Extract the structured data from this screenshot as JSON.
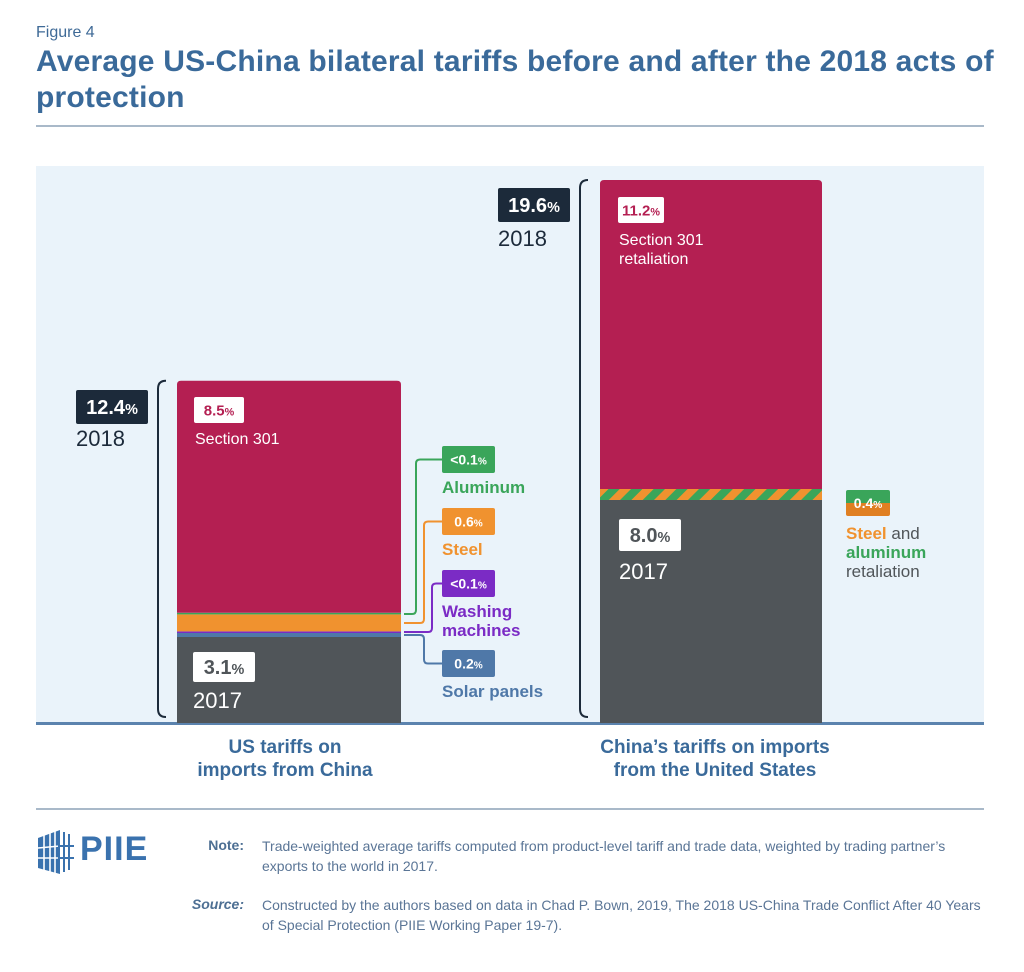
{
  "figure_label": "Figure 4",
  "title": "Average US-China bilateral tariffs before and after the 2018 acts of protection",
  "chart_data": {
    "type": "bar",
    "stacked": true,
    "title": "Average US-China bilateral tariffs before and after the 2018 acts of protection",
    "unit": "%",
    "categories": [
      "US tariffs on imports from China",
      "China's tariffs on imports from the United States"
    ],
    "groups": [
      {
        "label": "US tariffs on imports from China",
        "total_2018": 12.4,
        "total_2018_label": "12.4%",
        "total_2018_year": "2018",
        "segments": [
          {
            "name": "2017",
            "value": 3.1,
            "label": "3.1%",
            "caption": "2017",
            "color": "#505559"
          },
          {
            "name": "Solar panels",
            "value": 0.2,
            "label": "0.2%",
            "caption": "Solar panels",
            "color": "#4f78a8"
          },
          {
            "name": "Washing machines",
            "value": 0.05,
            "label": "<0.1%",
            "caption": "Washing machines",
            "color": "#7b2bc5"
          },
          {
            "name": "Steel",
            "value": 0.6,
            "label": "0.6%",
            "caption": "Steel",
            "color": "#f0922f"
          },
          {
            "name": "Aluminum",
            "value": 0.05,
            "label": "<0.1%",
            "caption": "Aluminum",
            "color": "#3aa55a"
          },
          {
            "name": "Section 301",
            "value": 8.5,
            "label": "8.5%",
            "caption": "Section 301",
            "color": "#b41f52"
          }
        ]
      },
      {
        "label": "China's tariffs on imports from the United States",
        "total_2018": 19.6,
        "total_2018_label": "19.6%",
        "total_2018_year": "2018",
        "segments": [
          {
            "name": "2017",
            "value": 8.0,
            "label": "8.0%",
            "caption": "2017",
            "color": "#505559"
          },
          {
            "name": "Steel and aluminum retaliation",
            "value": 0.4,
            "label": "0.4%",
            "caption_parts": [
              "Steel",
              " and",
              "aluminum",
              "retaliation"
            ],
            "color": "striped"
          },
          {
            "name": "Section 301 retaliation",
            "value": 11.2,
            "label": "11.2%",
            "caption": "Section 301 retaliation",
            "color": "#b41f52"
          }
        ]
      }
    ],
    "xlabels": [
      [
        "US tariffs on",
        "imports from China"
      ],
      [
        "China’s tariffs on imports",
        "from the United States"
      ]
    ],
    "ylim": [
      0,
      20
    ],
    "grid": false,
    "legend": "none"
  },
  "colors": {
    "section301": "#b41f52",
    "base2017": "#505559",
    "steel": "#f0922f",
    "aluminum": "#3aa55a",
    "washing": "#7b2bc5",
    "solar": "#4f78a8",
    "dark_badge": "#1c2a3a",
    "panel_bg": "#eaf3fa",
    "title_blue": "#3a6a9a"
  },
  "footer": {
    "logo_text": "PIIE",
    "note_label": "Note:",
    "note_text": "Trade-weighted average tariffs computed from product-level tariff and trade data, weighted by trading partner’s exports to the world in 2017.",
    "source_label": "Source:",
    "source_text": "Constructed by the authors based on data in Chad P. Bown, 2019, The 2018 US-China Trade Conflict After 40 Years of Special Protection (PIIE Working Paper 19-7)."
  }
}
